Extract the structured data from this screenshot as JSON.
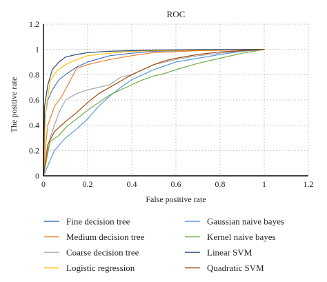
{
  "chart_data": {
    "type": "line",
    "title": "ROC",
    "xlabel": "False positive rate",
    "ylabel": "The positive rate",
    "xlim": [
      0,
      1.2
    ],
    "ylim": [
      0,
      1.2
    ],
    "xticks": [
      0,
      0.2,
      0.4,
      0.6,
      0.8,
      1,
      1.2
    ],
    "yticks": [
      0,
      0.2,
      0.4,
      0.6,
      0.8,
      1,
      1.2
    ],
    "xtick_labels": [
      "0",
      "0.2",
      "0.4",
      "0.6",
      "0.8",
      "1",
      "1.2"
    ],
    "ytick_labels": [
      "0",
      "0.2",
      "0.4",
      "0.6",
      "0.8",
      "1",
      "1.2"
    ],
    "grid": true,
    "legend_position": "bottom",
    "series": [
      {
        "name": "Fine decision tree",
        "color": "#4472c4",
        "x": [
          0,
          0.005,
          0.02,
          0.04,
          0.07,
          0.1,
          0.15,
          0.2,
          0.3,
          0.4,
          0.5,
          0.7,
          1
        ],
        "y": [
          0,
          0.45,
          0.6,
          0.68,
          0.76,
          0.8,
          0.86,
          0.9,
          0.95,
          0.97,
          0.985,
          0.995,
          1
        ]
      },
      {
        "name": "Medium decision tree",
        "color": "#ed7d31",
        "x": [
          0,
          0.01,
          0.02,
          0.05,
          0.08,
          0.12,
          0.15,
          0.2,
          0.3,
          0.4,
          0.5,
          0.7,
          1
        ],
        "y": [
          0,
          0.25,
          0.4,
          0.55,
          0.62,
          0.75,
          0.85,
          0.88,
          0.92,
          0.95,
          0.975,
          0.99,
          1
        ]
      },
      {
        "name": "Coarse decision tree",
        "color": "#a5a5a5",
        "x": [
          0,
          0.03,
          0.07,
          0.1,
          0.15,
          0.2,
          0.25,
          0.3,
          0.35,
          0.4,
          0.45,
          0.5,
          0.55,
          0.6,
          0.7,
          0.8,
          0.9,
          1
        ],
        "y": [
          0,
          0.3,
          0.5,
          0.6,
          0.65,
          0.68,
          0.7,
          0.72,
          0.78,
          0.8,
          0.84,
          0.88,
          0.9,
          0.92,
          0.95,
          0.97,
          0.99,
          1
        ]
      },
      {
        "name": "Logistic regression",
        "color": "#ffc000",
        "x": [
          0,
          0.01,
          0.03,
          0.06,
          0.1,
          0.15,
          0.2,
          0.3,
          0.4,
          0.5,
          0.7,
          1
        ],
        "y": [
          0,
          0.5,
          0.75,
          0.83,
          0.88,
          0.92,
          0.95,
          0.97,
          0.985,
          0.99,
          0.995,
          1
        ]
      },
      {
        "name": "Gaussian naive bayes",
        "color": "#5b9bd5",
        "x": [
          0,
          0.05,
          0.1,
          0.15,
          0.2,
          0.25,
          0.3,
          0.35,
          0.4,
          0.45,
          0.5,
          0.55,
          0.6,
          0.7,
          0.8,
          0.9,
          1
        ],
        "y": [
          0,
          0.2,
          0.3,
          0.37,
          0.45,
          0.55,
          0.63,
          0.7,
          0.76,
          0.8,
          0.84,
          0.87,
          0.9,
          0.93,
          0.96,
          0.985,
          1
        ]
      },
      {
        "name": "Kernel naive bayes",
        "color": "#70ad47",
        "x": [
          0,
          0.03,
          0.07,
          0.1,
          0.15,
          0.2,
          0.25,
          0.3,
          0.35,
          0.4,
          0.45,
          0.5,
          0.55,
          0.6,
          0.7,
          0.8,
          0.9,
          1
        ],
        "y": [
          0,
          0.27,
          0.32,
          0.38,
          0.45,
          0.52,
          0.58,
          0.64,
          0.68,
          0.72,
          0.76,
          0.79,
          0.81,
          0.84,
          0.89,
          0.93,
          0.97,
          1
        ]
      },
      {
        "name": "Linear SVM",
        "color": "#264478",
        "x": [
          0,
          0.005,
          0.02,
          0.04,
          0.07,
          0.1,
          0.15,
          0.2,
          0.3,
          0.4,
          0.5,
          0.7,
          1
        ],
        "y": [
          0,
          0.55,
          0.72,
          0.84,
          0.9,
          0.94,
          0.96,
          0.975,
          0.985,
          0.99,
          0.995,
          0.998,
          1
        ]
      },
      {
        "name": "Quadratic SVM",
        "color": "#9e480e",
        "x": [
          0,
          0.02,
          0.05,
          0.1,
          0.15,
          0.2,
          0.25,
          0.3,
          0.35,
          0.4,
          0.45,
          0.5,
          0.55,
          0.6,
          0.7,
          0.8,
          0.9,
          1
        ],
        "y": [
          0,
          0.25,
          0.35,
          0.43,
          0.5,
          0.58,
          0.65,
          0.7,
          0.75,
          0.8,
          0.84,
          0.88,
          0.91,
          0.93,
          0.96,
          0.98,
          0.99,
          1
        ]
      }
    ]
  }
}
